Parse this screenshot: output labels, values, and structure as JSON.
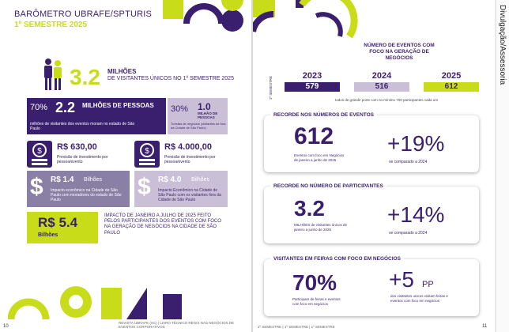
{
  "left_page": {
    "title": "BARÔMETRO UBRAFE/SPTURIS",
    "subtitle": "1º SEMESTRE 2025",
    "visitors": {
      "value": "3.2",
      "unit": "MILHÕES",
      "desc": "DE VISITANTES ÚNICOS NO 1º SEMESTRE 2025"
    },
    "stat_a": {
      "percent": "70%",
      "value": "2.2",
      "unit": "MILHÕES DE PESSOAS",
      "desc": "milhões de visitantes dos eventos moram no estado de São Paulo"
    },
    "stat_b": {
      "percent": "30%",
      "value": "1.0",
      "unit": "MILHÃO DE PESSOAS",
      "desc": "Turistas de negócios (visitantes de fora da Cidade de São Paulo)"
    },
    "spend_1": {
      "value": "R$ 630,00",
      "desc": "Previsão de investimento por pessoa/evento"
    },
    "spend_2": {
      "value": "R$ 4.000,00",
      "desc": "Previsão de investimento por pessoa/evento"
    },
    "impact_1": {
      "value": "R$ 1.4",
      "unit": "Bilhões",
      "desc": "Impacto econômico na Cidade de São Paulo com moradores do estado de São Paulo"
    },
    "impact_2": {
      "value": "R$ 4.0",
      "unit": "Bilhões",
      "desc": "Impacto Econômico na Cidade de São Paulo com os visitantes fora da Cidade de São Paulo"
    },
    "total": {
      "value": "R$ 5.4",
      "unit": "Bilhões",
      "desc": "IMPACTO DE JANEIRO A JULHO DE 2025 FEITO PELOS PARTICIPANTES DOS EVENTOS COM FOCO NA GERAÇÃO DE NEGÓCIOS NA CIDADE DE SÃO PAULO"
    },
    "page_number": "10",
    "footer_text": "REVISTA UBRAFE (SC) | LIVRO TÉCNICO REGIS NAS NEGÓCIOS DE EVENTOS CORPORATIVOS"
  },
  "right_page": {
    "events_title": "NÚMERO DE EVENTOS COM FOCO NA GERAÇÃO DE NEGÓCIOS",
    "side_label": "1º SEMESTRE",
    "years": [
      {
        "year": "2023",
        "count": "579"
      },
      {
        "year": "2024",
        "count": "516"
      },
      {
        "year": "2025",
        "count": "612"
      }
    ],
    "events_note": "todos de grande porte com no mínimo 700 participantes cada um",
    "card1": {
      "title": "RECORDE NOS NÚMEROS DE EVENTOS",
      "value": "612",
      "value_desc": "Eventos com foco em Negócios de janeiro a junho de 2025",
      "change": "+19%",
      "change_desc": "se comparado a 2024"
    },
    "card2": {
      "title": "RECORDE NO NÚMERO DE PARTICIPANTES",
      "value": "3.2",
      "value_desc": "MILHÕES de visitantes únicos de janeiro a junho de 2025",
      "change": "+14%",
      "change_desc": "se comparado a 2024"
    },
    "card3": {
      "title": "VISITANTES EM FEIRAS COM FOCO EM NEGÓCIOS",
      "value": "70%",
      "value_desc": "Participam de feiras e eventos com foco em negócios",
      "change": "+5",
      "change_unit": "PP",
      "change_desc": "dos visitantes unicos visitam feiras e eventos com foco em negócios"
    },
    "page_number": "11",
    "footer_text": "1º SEMESTRE | 1º SEMESTRE | 1º SEMESTRE"
  },
  "side_text": "Divulgação/Assessoria",
  "colors": {
    "purple": "#3a1f6e",
    "lime": "#c9dc1a",
    "lavender": "#c9c0d8"
  }
}
